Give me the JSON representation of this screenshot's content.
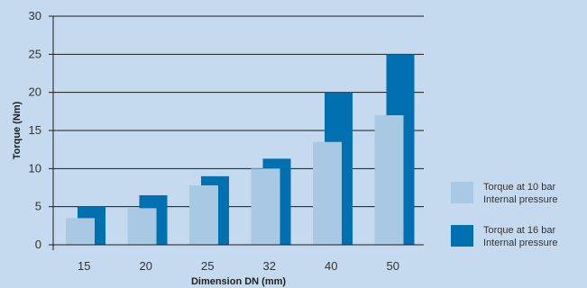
{
  "chart_data": {
    "type": "bar",
    "title": "",
    "xlabel": "Dimension DN (mm)",
    "ylabel": "Torque (Nm)",
    "categories": [
      "15",
      "20",
      "25",
      "32",
      "40",
      "50"
    ],
    "series": [
      {
        "name": "Torque at 10 bar Internal pressure",
        "legend_lines": [
          "Torque at 10 bar",
          "Internal pressure"
        ],
        "color": "#a9c8e3",
        "values": [
          3.5,
          4.8,
          7.8,
          10,
          13.5,
          17
        ]
      },
      {
        "name": "Torque at 16 bar Internal pressure",
        "legend_lines": [
          "Torque at 16 bar",
          "Internal pressure"
        ],
        "color": "#0170b1",
        "values": [
          5,
          6.5,
          9,
          11.3,
          20,
          25
        ]
      }
    ],
    "ylim": [
      0,
      30
    ],
    "yticks": [
      0,
      5,
      10,
      15,
      20,
      25,
      30
    ],
    "grid": true,
    "legend_position": "right"
  }
}
